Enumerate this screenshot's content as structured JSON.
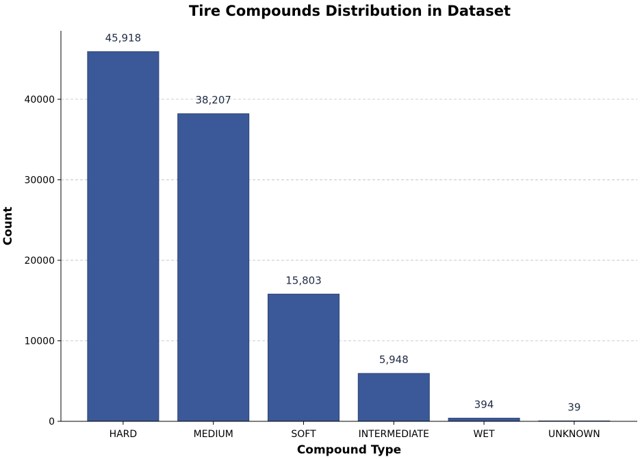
{
  "chart_data": {
    "type": "bar",
    "title": "Tire Compounds Distribution in Dataset",
    "xlabel": "Compound Type",
    "ylabel": "Count",
    "categories": [
      "HARD",
      "MEDIUM",
      "SOFT",
      "INTERMEDIATE",
      "WET",
      "UNKNOWN"
    ],
    "values": [
      45918,
      38207,
      15803,
      5948,
      394,
      39
    ],
    "data_labels": [
      "45,918",
      "38,207",
      "15,803",
      "5,948",
      "394",
      "39"
    ],
    "y_ticks": [
      0,
      10000,
      20000,
      30000,
      40000
    ],
    "ylim": [
      0,
      48500
    ],
    "grid": "horizontal dashed",
    "legend": "none",
    "colors": {
      "bar_fill": "#3b5998",
      "bar_edge": "#2c4272",
      "data_label": "#1f2a44"
    }
  }
}
